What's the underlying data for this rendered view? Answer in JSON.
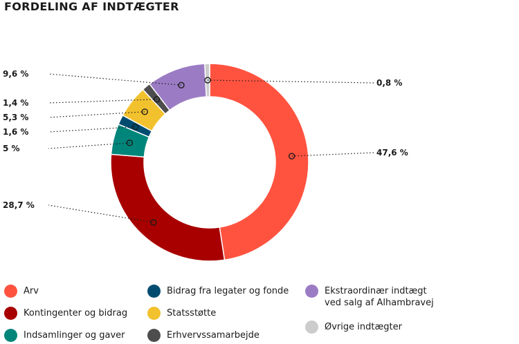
{
  "chart_data": {
    "type": "pie",
    "title": "FORDELING AF INDTÆGTER",
    "slices": [
      {
        "name": "Arv",
        "value": 47.6,
        "label": "47,6 %",
        "color": "#ff5340"
      },
      {
        "name": "Kontingenter og bidrag",
        "value": 28.7,
        "label": "28,7 %",
        "color": "#a80000"
      },
      {
        "name": "Indsamlinger og gaver",
        "value": 5,
        "label": "5 %",
        "color": "#00857a"
      },
      {
        "name": "Bidrag fra legater og fonde",
        "value": 1.6,
        "label": "1,6 %",
        "color": "#004c70"
      },
      {
        "name": "Statsstøtte",
        "value": 5.3,
        "label": "5,3 %",
        "color": "#f2c12e"
      },
      {
        "name": "Erhvervssamarbejde",
        "value": 1.4,
        "label": "1,4 %",
        "color": "#4d4d4d"
      },
      {
        "name": "Ekstraordinær indtægt\nved salg af Alhambravej",
        "value": 9.6,
        "label": "9,6 %",
        "color": "#9b7cc4"
      },
      {
        "name": "Øvrige indtægter",
        "value": 0.8,
        "label": "0,8 %",
        "color": "#cccccc"
      }
    ],
    "donut": true,
    "legend_position": "bottom"
  }
}
